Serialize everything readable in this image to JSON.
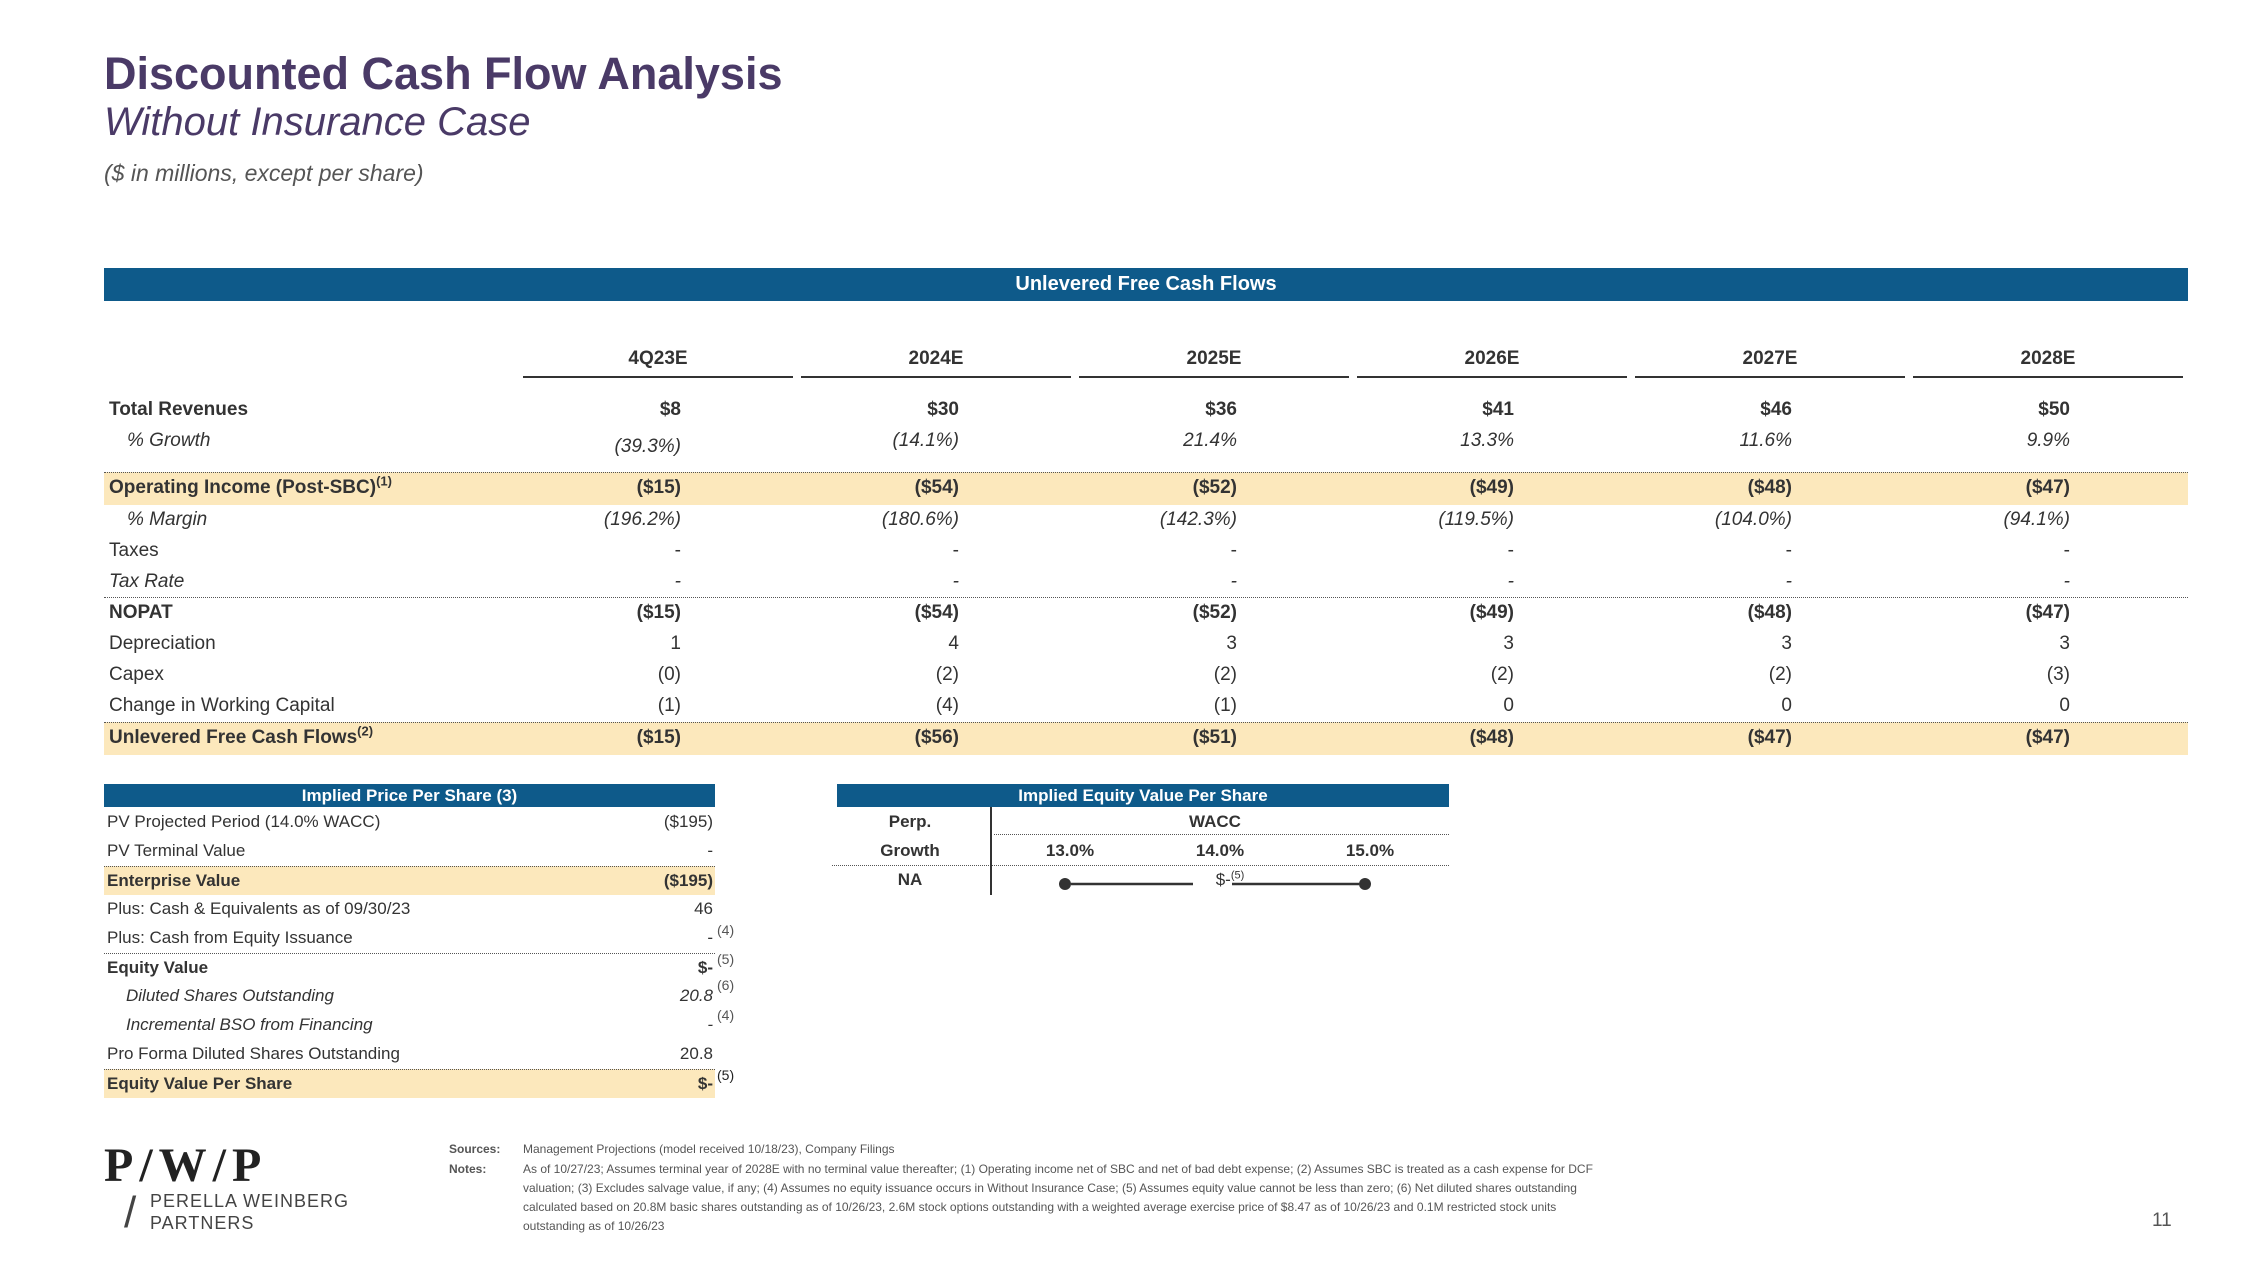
{
  "header": {
    "title": "Discounted Cash Flow Analysis",
    "subtitle": "Without Insurance Case",
    "units": "($ in millions, except per share)"
  },
  "ufcf": {
    "banner": "Unlevered Free Cash Flows",
    "columns": [
      "4Q23E",
      "2024E",
      "2025E",
      "2026E",
      "2027E",
      "2028E"
    ],
    "rows": {
      "total_revenues": {
        "label": "Total Revenues",
        "values": [
          "$8",
          "$30",
          "$36",
          "$41",
          "$46",
          "$50"
        ]
      },
      "growth": {
        "label": "% Growth",
        "values": [
          "(39.3%)",
          "(14.1%)",
          "21.4%",
          "13.3%",
          "11.6%",
          "9.9%"
        ]
      },
      "op_income": {
        "label": "Operating Income (Post-SBC)",
        "note": "(1)",
        "values": [
          "($15)",
          "($54)",
          "($52)",
          "($49)",
          "($48)",
          "($47)"
        ]
      },
      "margin": {
        "label": "% Margin",
        "values": [
          "(196.2%)",
          "(180.6%)",
          "(142.3%)",
          "(119.5%)",
          "(104.0%)",
          "(94.1%)"
        ]
      },
      "taxes": {
        "label": "Taxes",
        "values": [
          "-",
          "-",
          "-",
          "-",
          "-",
          "-"
        ]
      },
      "tax_rate": {
        "label": "Tax Rate",
        "values": [
          "-",
          "-",
          "-",
          "-",
          "-",
          "-"
        ]
      },
      "nopat": {
        "label": "NOPAT",
        "values": [
          "($15)",
          "($54)",
          "($52)",
          "($49)",
          "($48)",
          "($47)"
        ]
      },
      "depreciation": {
        "label": "Depreciation",
        "values": [
          "1",
          "4",
          "3",
          "3",
          "3",
          "3"
        ]
      },
      "capex": {
        "label": "Capex",
        "values": [
          "(0)",
          "(2)",
          "(2)",
          "(2)",
          "(2)",
          "(3)"
        ]
      },
      "nwc": {
        "label": "Change in Working Capital",
        "values": [
          "(1)",
          "(4)",
          "(1)",
          "0",
          "0",
          "0"
        ]
      },
      "ufcf": {
        "label": "Unlevered Free Cash Flows",
        "note": "(2)",
        "values": [
          "($15)",
          "($56)",
          "($51)",
          "($48)",
          "($47)",
          "($47)"
        ]
      }
    }
  },
  "price_table": {
    "title": "Implied Price Per Share",
    "title_note": "(3)",
    "rows": [
      {
        "label": "PV Projected Period (14.0% WACC)",
        "value": "($195)",
        "note": ""
      },
      {
        "label": "PV Terminal Value",
        "value": "-",
        "note": ""
      },
      {
        "label": "Enterprise Value",
        "value": "($195)",
        "note": ""
      },
      {
        "label": "Plus: Cash & Equivalents as of 09/30/23",
        "value": "46",
        "note": ""
      },
      {
        "label": "Plus: Cash from Equity Issuance",
        "value": "-",
        "note": "(4)"
      },
      {
        "label": "Equity Value",
        "value": "$-",
        "note": "(5)"
      },
      {
        "label": "Diluted Shares Outstanding",
        "value": "20.8",
        "note": "(6)"
      },
      {
        "label": "Incremental BSO from Financing",
        "value": "-",
        "note": "(4)"
      },
      {
        "label": "Pro Forma Diluted Shares Outstanding",
        "value": "20.8",
        "note": ""
      },
      {
        "label": "Equity Value Per Share",
        "value": "$-",
        "note": "(5)"
      }
    ]
  },
  "equity_table": {
    "title": "Implied Equity Value Per Share",
    "perp_label": "Perp.",
    "growth_label": "Growth",
    "wacc_label": "WACC",
    "wacc_values": [
      "13.0%",
      "14.0%",
      "15.0%"
    ],
    "row_label": "NA",
    "mid_value": "$-",
    "mid_note": "(5)"
  },
  "footer": {
    "sources_label": "Sources:",
    "sources_text": "Management Projections (model received 10/18/23), Company Filings",
    "notes_label": "Notes:",
    "notes_lines": [
      "As of 10/27/23; Assumes terminal year of 2028E with no terminal value thereafter; (1) Operating income net of SBC and net of bad debt expense; (2) Assumes SBC is treated as a cash expense for DCF",
      "valuation; (3) Excludes salvage value, if any; (4) Assumes no equity issuance occurs in Without Insurance Case; (5) Assumes equity value cannot be less than zero; (6) Net diluted shares outstanding",
      "calculated based on 20.8M basic shares outstanding as of 10/26/23, 2.6M stock options outstanding with a weighted average exercise price of $8.47 as of 10/26/23 and 0.1M restricted stock units",
      "outstanding as of 10/26/23"
    ]
  },
  "logo": {
    "mark": "P/W/P",
    "name_line1": "PERELLA WEINBERG",
    "name_line2": "PARTNERS"
  },
  "page_number": "11"
}
